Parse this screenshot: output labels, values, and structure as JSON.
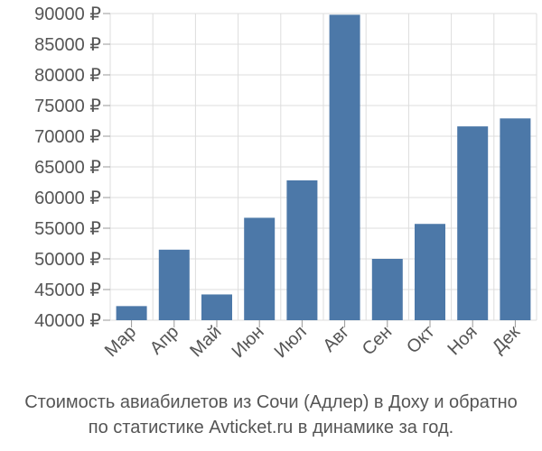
{
  "chart_data": {
    "type": "bar",
    "title": "",
    "xlabel": "",
    "ylabel": "",
    "categories": [
      "Мар",
      "Апр",
      "Май",
      "Июн",
      "Июл",
      "Авг",
      "Сен",
      "Окт",
      "Ноя",
      "Дек"
    ],
    "values": [
      42300,
      51500,
      44200,
      56700,
      62800,
      89800,
      50000,
      55700,
      71600,
      72900
    ],
    "ylim": [
      40000,
      90000
    ],
    "yticks": [
      40000,
      45000,
      50000,
      55000,
      60000,
      65000,
      70000,
      75000,
      80000,
      85000,
      90000
    ],
    "ytick_labels": [
      "40000 ₽",
      "45000 ₽",
      "50000 ₽",
      "55000 ₽",
      "60000 ₽",
      "65000 ₽",
      "70000 ₽",
      "75000 ₽",
      "80000 ₽",
      "85000 ₽",
      "90000 ₽"
    ],
    "grid": true,
    "bar_color": "#4c78a8"
  },
  "caption": {
    "line1": "Стоимость авиабилетов из Сочи (Адлер) в Доху и обратно",
    "line2": "по статистике Avticket.ru в динамике за год."
  }
}
